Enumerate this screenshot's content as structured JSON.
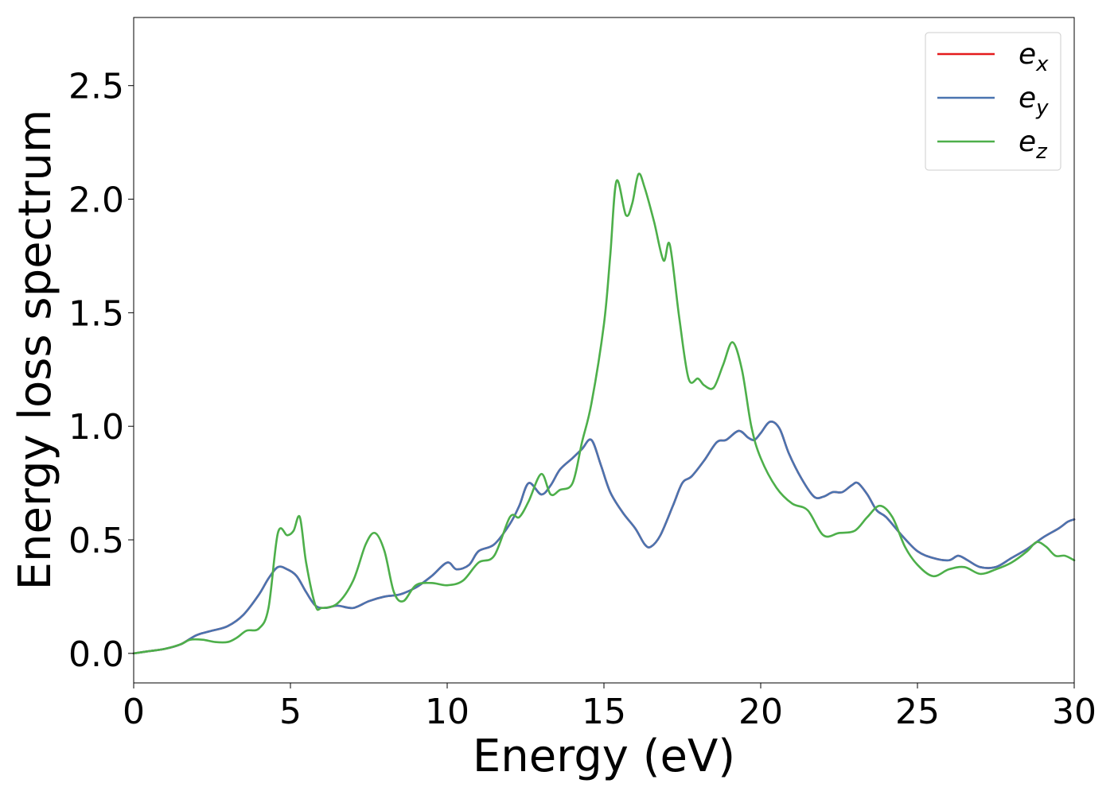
{
  "chart_data": {
    "type": "line",
    "title": "",
    "xlabel": "Energy (eV)",
    "ylabel": "Energy loss spectrum",
    "xlim": [
      0,
      30
    ],
    "ylim": [
      -0.13,
      2.8
    ],
    "xticks": [
      0,
      5,
      10,
      15,
      20,
      25,
      30
    ],
    "xtick_labels": [
      "0",
      "5",
      "10",
      "15",
      "20",
      "25",
      "30"
    ],
    "yticks": [
      0.0,
      0.5,
      1.0,
      1.5,
      2.0,
      2.5
    ],
    "ytick_labels": [
      "0.0",
      "0.5",
      "1.0",
      "1.5",
      "2.0",
      "2.5"
    ],
    "grid": false,
    "legend_position": "top-right",
    "series": [
      {
        "name": "e_x",
        "label_base": "e",
        "label_sub": "x",
        "color": "#e41a1c",
        "x": [
          0,
          0.5,
          1.0,
          1.5,
          2.0,
          2.5,
          3.0,
          3.5,
          4.0,
          4.3,
          4.6,
          4.9,
          5.2,
          5.5,
          5.8,
          6.1,
          6.5,
          7.0,
          7.5,
          8.0,
          8.5,
          9.0,
          9.5,
          10.0,
          10.3,
          10.7,
          11.0,
          11.5,
          12.0,
          12.3,
          12.6,
          13.0,
          13.3,
          13.6,
          14.0,
          14.3,
          14.6,
          14.9,
          15.2,
          15.6,
          16.0,
          16.3,
          16.5,
          16.8,
          17.2,
          17.5,
          17.8,
          18.2,
          18.6,
          18.9,
          19.3,
          19.6,
          19.8,
          20.0,
          20.3,
          20.6,
          20.9,
          21.3,
          21.7,
          22.0,
          22.3,
          22.6,
          22.9,
          23.1,
          23.4,
          23.7,
          24.0,
          24.5,
          25.0,
          25.5,
          26.0,
          26.3,
          26.6,
          27.0,
          27.5,
          28.0,
          28.5,
          29.0,
          29.5,
          29.8,
          30.0
        ],
        "y": [
          0.0,
          0.01,
          0.02,
          0.04,
          0.08,
          0.1,
          0.12,
          0.17,
          0.26,
          0.33,
          0.38,
          0.37,
          0.34,
          0.27,
          0.21,
          0.2,
          0.21,
          0.2,
          0.23,
          0.25,
          0.26,
          0.29,
          0.34,
          0.4,
          0.37,
          0.39,
          0.45,
          0.48,
          0.57,
          0.65,
          0.75,
          0.7,
          0.74,
          0.81,
          0.86,
          0.9,
          0.94,
          0.83,
          0.71,
          0.62,
          0.55,
          0.48,
          0.47,
          0.52,
          0.65,
          0.75,
          0.78,
          0.85,
          0.93,
          0.94,
          0.98,
          0.95,
          0.94,
          0.97,
          1.02,
          0.99,
          0.88,
          0.77,
          0.69,
          0.69,
          0.71,
          0.71,
          0.74,
          0.75,
          0.7,
          0.63,
          0.6,
          0.52,
          0.45,
          0.42,
          0.41,
          0.43,
          0.41,
          0.38,
          0.38,
          0.42,
          0.46,
          0.51,
          0.55,
          0.58,
          0.59
        ]
      },
      {
        "name": "e_y",
        "label_base": "e",
        "label_sub": "y",
        "color": "#4a74b0",
        "x": [
          0,
          0.5,
          1.0,
          1.5,
          2.0,
          2.5,
          3.0,
          3.5,
          4.0,
          4.3,
          4.6,
          4.9,
          5.2,
          5.5,
          5.8,
          6.1,
          6.5,
          7.0,
          7.5,
          8.0,
          8.5,
          9.0,
          9.5,
          10.0,
          10.3,
          10.7,
          11.0,
          11.5,
          12.0,
          12.3,
          12.6,
          13.0,
          13.3,
          13.6,
          14.0,
          14.3,
          14.6,
          14.9,
          15.2,
          15.6,
          16.0,
          16.3,
          16.5,
          16.8,
          17.2,
          17.5,
          17.8,
          18.2,
          18.6,
          18.9,
          19.3,
          19.6,
          19.8,
          20.0,
          20.3,
          20.6,
          20.9,
          21.3,
          21.7,
          22.0,
          22.3,
          22.6,
          22.9,
          23.1,
          23.4,
          23.7,
          24.0,
          24.5,
          25.0,
          25.5,
          26.0,
          26.3,
          26.6,
          27.0,
          27.5,
          28.0,
          28.5,
          29.0,
          29.5,
          29.8,
          30.0
        ],
        "y": [
          0.0,
          0.01,
          0.02,
          0.04,
          0.08,
          0.1,
          0.12,
          0.17,
          0.26,
          0.33,
          0.38,
          0.37,
          0.34,
          0.27,
          0.21,
          0.2,
          0.21,
          0.2,
          0.23,
          0.25,
          0.26,
          0.29,
          0.34,
          0.4,
          0.37,
          0.39,
          0.45,
          0.48,
          0.57,
          0.65,
          0.75,
          0.7,
          0.74,
          0.81,
          0.86,
          0.9,
          0.94,
          0.83,
          0.71,
          0.62,
          0.55,
          0.48,
          0.47,
          0.52,
          0.65,
          0.75,
          0.78,
          0.85,
          0.93,
          0.94,
          0.98,
          0.95,
          0.94,
          0.97,
          1.02,
          0.99,
          0.88,
          0.77,
          0.69,
          0.69,
          0.71,
          0.71,
          0.74,
          0.75,
          0.7,
          0.63,
          0.6,
          0.52,
          0.45,
          0.42,
          0.41,
          0.43,
          0.41,
          0.38,
          0.38,
          0.42,
          0.46,
          0.51,
          0.55,
          0.58,
          0.59
        ]
      },
      {
        "name": "e_z",
        "label_base": "e",
        "label_sub": "z",
        "color": "#4daf4a",
        "x": [
          0,
          0.5,
          1.0,
          1.5,
          1.8,
          2.2,
          2.6,
          3.0,
          3.3,
          3.6,
          4.0,
          4.3,
          4.6,
          4.9,
          5.1,
          5.3,
          5.5,
          5.8,
          6.0,
          6.5,
          7.0,
          7.4,
          7.7,
          8.0,
          8.3,
          8.6,
          9.0,
          9.5,
          10.0,
          10.5,
          11.0,
          11.5,
          12.0,
          12.3,
          12.6,
          13.0,
          13.3,
          13.6,
          14.0,
          14.3,
          14.6,
          15.0,
          15.2,
          15.4,
          15.7,
          15.9,
          16.1,
          16.3,
          16.6,
          16.9,
          17.1,
          17.4,
          17.7,
          18.0,
          18.2,
          18.5,
          18.8,
          19.1,
          19.4,
          19.7,
          20.0,
          20.5,
          21.0,
          21.5,
          22.0,
          22.5,
          23.0,
          23.4,
          23.8,
          24.2,
          24.6,
          25.0,
          25.5,
          26.0,
          26.5,
          27.0,
          27.5,
          28.0,
          28.5,
          28.8,
          29.1,
          29.4,
          29.7,
          30.0
        ],
        "y": [
          0.0,
          0.01,
          0.02,
          0.04,
          0.06,
          0.06,
          0.05,
          0.05,
          0.07,
          0.1,
          0.11,
          0.2,
          0.53,
          0.52,
          0.54,
          0.6,
          0.4,
          0.21,
          0.2,
          0.22,
          0.32,
          0.48,
          0.53,
          0.45,
          0.27,
          0.23,
          0.3,
          0.31,
          0.3,
          0.32,
          0.4,
          0.43,
          0.6,
          0.6,
          0.67,
          0.79,
          0.7,
          0.72,
          0.75,
          0.93,
          1.1,
          1.45,
          1.75,
          2.08,
          1.93,
          1.98,
          2.11,
          2.05,
          1.9,
          1.73,
          1.8,
          1.48,
          1.21,
          1.21,
          1.18,
          1.17,
          1.27,
          1.37,
          1.25,
          1.0,
          0.86,
          0.73,
          0.66,
          0.63,
          0.52,
          0.53,
          0.54,
          0.6,
          0.65,
          0.6,
          0.47,
          0.39,
          0.34,
          0.37,
          0.38,
          0.35,
          0.37,
          0.4,
          0.45,
          0.49,
          0.47,
          0.43,
          0.43,
          0.41
        ]
      }
    ]
  }
}
